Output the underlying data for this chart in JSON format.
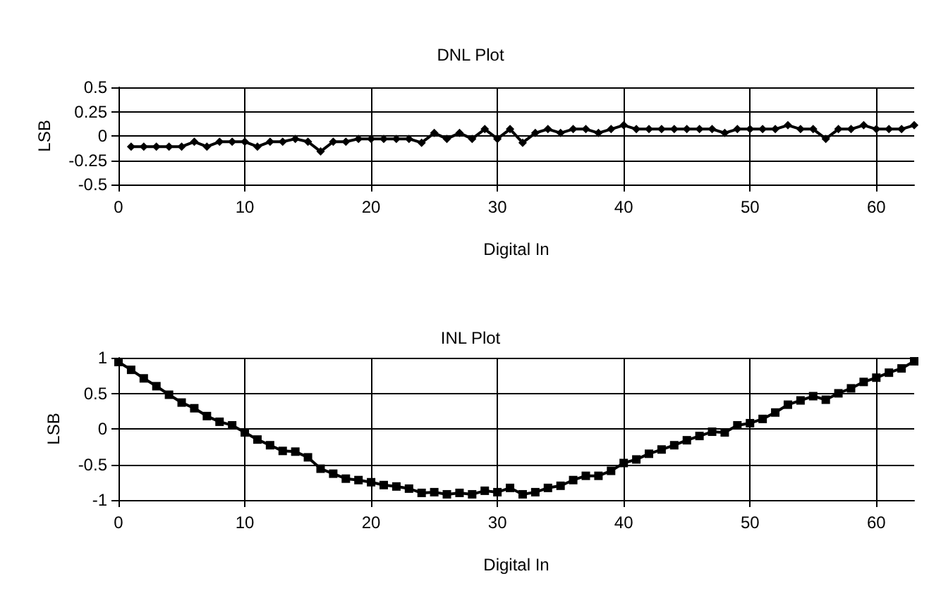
{
  "chart_data": [
    {
      "type": "line",
      "title": "DNL Plot",
      "xlabel": "Digital In",
      "ylabel": "LSB",
      "marker": "diamond",
      "grid": true,
      "x": [
        1,
        2,
        3,
        4,
        5,
        6,
        7,
        8,
        9,
        10,
        11,
        12,
        13,
        14,
        15,
        16,
        17,
        18,
        19,
        20,
        21,
        22,
        23,
        24,
        25,
        26,
        27,
        28,
        29,
        30,
        31,
        32,
        33,
        34,
        35,
        36,
        37,
        38,
        39,
        40,
        41,
        42,
        43,
        44,
        45,
        46,
        47,
        48,
        49,
        50,
        51,
        52,
        53,
        54,
        55,
        56,
        57,
        58,
        59,
        60,
        61,
        62,
        63
      ],
      "series": [
        {
          "color": "#000000",
          "values": [
            -0.11,
            -0.11,
            -0.11,
            -0.11,
            -0.11,
            -0.06,
            -0.11,
            -0.06,
            -0.06,
            -0.06,
            -0.11,
            -0.06,
            -0.06,
            -0.03,
            -0.06,
            -0.16,
            -0.06,
            -0.06,
            -0.03,
            -0.03,
            -0.03,
            -0.03,
            -0.03,
            -0.07,
            0.03,
            -0.03,
            0.03,
            -0.03,
            0.07,
            -0.03,
            0.07,
            -0.07,
            0.03,
            0.07,
            0.03,
            0.07,
            0.07,
            0.03,
            0.07,
            0.11,
            0.07,
            0.07,
            0.07,
            0.07,
            0.07,
            0.07,
            0.07,
            0.03,
            0.07,
            0.07,
            0.07,
            0.07,
            0.11,
            0.07,
            0.07,
            -0.03,
            0.07,
            0.07,
            0.11,
            0.07,
            0.07,
            0.07,
            0.11
          ]
        }
      ],
      "xlim": [
        0,
        63
      ],
      "xticks": [
        0,
        10,
        20,
        30,
        40,
        50,
        60
      ],
      "ylim": [
        -0.5,
        0.5
      ],
      "yticks": [
        -0.5,
        -0.25,
        0,
        0.25,
        0.5
      ]
    },
    {
      "type": "line",
      "title": "INL Plot",
      "xlabel": "Digital In",
      "ylabel": "LSB",
      "marker": "square",
      "grid": true,
      "x": [
        0,
        1,
        2,
        3,
        4,
        5,
        6,
        7,
        8,
        9,
        10,
        11,
        12,
        13,
        14,
        15,
        16,
        17,
        18,
        19,
        20,
        21,
        22,
        23,
        24,
        25,
        26,
        27,
        28,
        29,
        30,
        31,
        32,
        33,
        34,
        35,
        36,
        37,
        38,
        39,
        40,
        41,
        42,
        43,
        44,
        45,
        46,
        47,
        48,
        49,
        50,
        51,
        52,
        53,
        54,
        55,
        56,
        57,
        58,
        59,
        60,
        61,
        62,
        63
      ],
      "series": [
        {
          "color": "#000000",
          "values": [
            0.94,
            0.83,
            0.71,
            0.6,
            0.48,
            0.37,
            0.29,
            0.18,
            0.1,
            0.05,
            -0.05,
            -0.15,
            -0.23,
            -0.31,
            -0.32,
            -0.4,
            -0.56,
            -0.63,
            -0.7,
            -0.72,
            -0.75,
            -0.79,
            -0.81,
            -0.84,
            -0.9,
            -0.89,
            -0.92,
            -0.9,
            -0.92,
            -0.87,
            -0.89,
            -0.83,
            -0.92,
            -0.89,
            -0.83,
            -0.8,
            -0.72,
            -0.66,
            -0.66,
            -0.59,
            -0.48,
            -0.43,
            -0.35,
            -0.29,
            -0.23,
            -0.16,
            -0.1,
            -0.04,
            -0.05,
            0.05,
            0.08,
            0.14,
            0.23,
            0.34,
            0.4,
            0.46,
            0.41,
            0.5,
            0.57,
            0.66,
            0.72,
            0.79,
            0.85,
            0.95
          ]
        }
      ],
      "xlim": [
        0,
        63
      ],
      "xticks": [
        0,
        10,
        20,
        30,
        40,
        50,
        60
      ],
      "ylim": [
        -1,
        1
      ],
      "yticks": [
        -1,
        -0.5,
        0,
        0.5,
        1
      ]
    }
  ]
}
